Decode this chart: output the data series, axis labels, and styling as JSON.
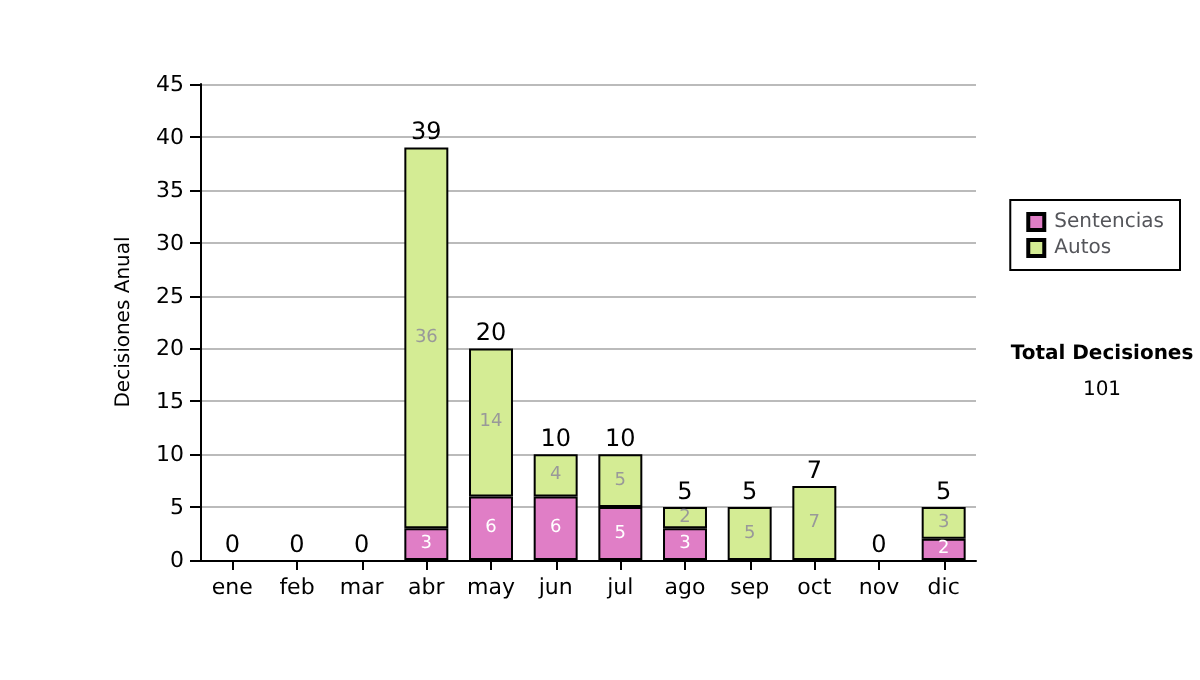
{
  "chart_data": {
    "type": "bar",
    "stacked": true,
    "ylabel": "Decisiones Anual",
    "categories": [
      "ene",
      "feb",
      "mar",
      "abr",
      "may",
      "jun",
      "jul",
      "ago",
      "sep",
      "oct",
      "nov",
      "dic"
    ],
    "series": [
      {
        "name": "Sentencias",
        "color": "#e07ec6",
        "values": [
          0,
          0,
          0,
          3,
          6,
          6,
          5,
          3,
          0,
          0,
          0,
          2
        ],
        "value_labels": [
          null,
          null,
          null,
          "3",
          "6",
          "6",
          "5",
          "3",
          null,
          null,
          null,
          "2"
        ]
      },
      {
        "name": "Autos",
        "color": "#d4ec94",
        "values": [
          0,
          0,
          0,
          36,
          14,
          4,
          5,
          2,
          5,
          7,
          0,
          3
        ],
        "value_labels": [
          null,
          null,
          null,
          "36",
          "14",
          "4",
          "5",
          "2",
          "5",
          "7",
          null,
          "3"
        ]
      }
    ],
    "totals": [
      "0",
      "0",
      "0",
      "39",
      "20",
      "10",
      "10",
      "5",
      "5",
      "7",
      "0",
      "5"
    ],
    "ylim": [
      0,
      45
    ],
    "yticks": [
      0,
      5,
      10,
      15,
      20,
      25,
      30,
      35,
      40,
      45
    ],
    "grid": "y",
    "legend": "right",
    "annotations": [
      "Total Decisiones",
      "101"
    ]
  }
}
